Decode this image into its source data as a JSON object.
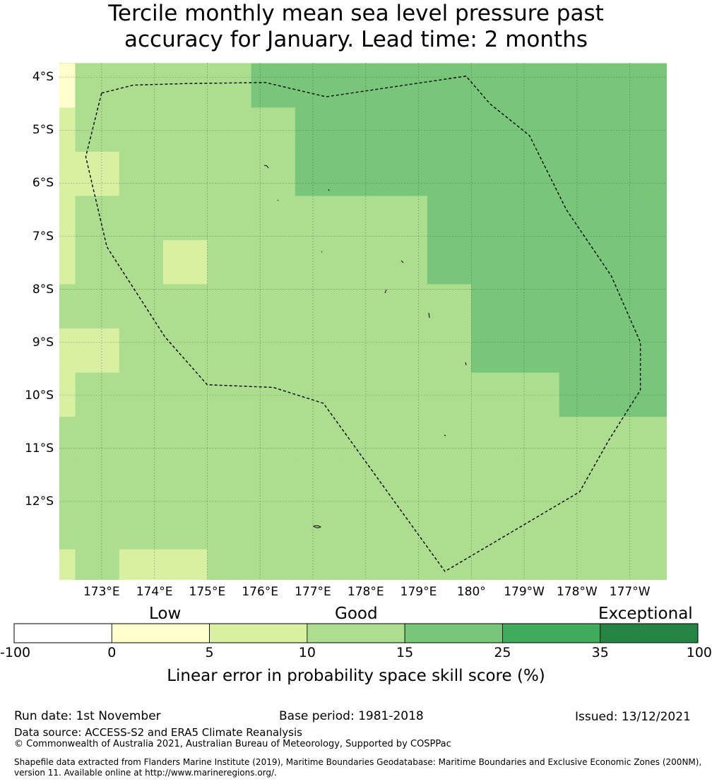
{
  "title": {
    "line1": "Tercile monthly mean sea level pressure past",
    "line2": "accuracy for January. Lead time: 2 months"
  },
  "map": {
    "lat_labels": [
      "4°S",
      "5°S",
      "6°S",
      "7°S",
      "8°S",
      "9°S",
      "10°S",
      "11°S",
      "12°S"
    ],
    "lon_labels": [
      "173°E",
      "174°E",
      "175°E",
      "176°E",
      "177°E",
      "178°E",
      "179°E",
      "180°",
      "179°W",
      "178°W",
      "177°W"
    ],
    "lat_values": [
      -4,
      -5,
      -6,
      -7,
      -8,
      -9,
      -10,
      -11,
      -12
    ],
    "lon_values": [
      173,
      174,
      175,
      176,
      177,
      178,
      179,
      180,
      181,
      182,
      183
    ],
    "extent": {
      "lon_min": 172.2,
      "lon_max": 183.7,
      "lat_min": -13.48,
      "lat_max": -3.73
    },
    "cell_lon_start": 172.5,
    "cell_lat_start": -3.74,
    "cell_deg": 0.833,
    "grid_category_codes": [
      "133334444444444444444444",
      "233333444444444444444444",
      "2233334444444444444444444",
      "2333333334444444444444444",
      "2332333334444444444444444",
      "3333333333444444444444444",
      "2233333333444444444444444",
      "2333333333334444444444444",
      "3333333333333333444444444",
      "3333333333333333333334444",
      "3333333333333333334433443",
      "2322333333333333333333443",
      "2222333333233333333333333",
      "2222322222233222333333333",
      "2222222222222222233333333",
      "2222222222222222223323333",
      "2222111122222222222333333",
      "2222222212222222222333333",
      "2222222212222122222222222",
      "3222222212212222222222222"
    ],
    "boundary_lonlat": [
      [
        173.0,
        -4.3
      ],
      [
        173.6,
        -4.15
      ],
      [
        174.6,
        -4.12
      ],
      [
        176.1,
        -4.1
      ],
      [
        177.25,
        -4.37
      ],
      [
        179.9,
        -3.98
      ],
      [
        180.35,
        -4.5
      ],
      [
        181.1,
        -5.1
      ],
      [
        181.8,
        -6.5
      ],
      [
        182.65,
        -7.75
      ],
      [
        183.2,
        -9.0
      ],
      [
        183.2,
        -9.9
      ],
      [
        182.6,
        -10.85
      ],
      [
        182.05,
        -11.82
      ],
      [
        179.5,
        -13.32
      ],
      [
        177.2,
        -10.15
      ],
      [
        176.25,
        -9.85
      ],
      [
        175.0,
        -9.8
      ],
      [
        174.2,
        -8.9
      ],
      [
        173.1,
        -7.2
      ],
      [
        172.7,
        -5.5
      ],
      [
        173.0,
        -4.3
      ]
    ]
  },
  "colorbar": {
    "category_words": [
      "Low",
      "Good",
      "Exceptional"
    ],
    "boundaries": [
      "-100",
      "0",
      "5",
      "10",
      "15",
      "25",
      "35",
      "100"
    ],
    "colors": [
      "#ffffff",
      "#ffffcc",
      "#d9f0a3",
      "#addd8e",
      "#78c679",
      "#41ab5d",
      "#238443"
    ],
    "label": "Linear error in probability space skill score (%)"
  },
  "footer": {
    "run_date": "Run date: 1st November",
    "base_period": "Base period: 1981-2018",
    "issued": "Issued: 13/12/2021",
    "data_source": "Data source: ACCESS-S2 and ERA5 Climate Reanalysis",
    "copyright": "© Commonwealth of Australia 2021, Australian Bureau of Meteorology, Supported by COSPPac",
    "shapefile_line1": "Shapefile data extracted from Flanders Marine Institute (2019), Maritime Boundaries Geodatabase: Maritime Boundaries and Exclusive Economic Zones (200NM),",
    "shapefile_line2": "version 11. Available online at http://www.marineregions.org/."
  }
}
